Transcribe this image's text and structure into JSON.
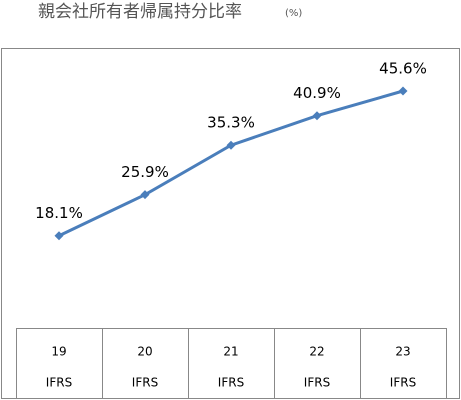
{
  "chart_data": {
    "type": "line",
    "title": "親会社所有者帰属持分比率",
    "title_unit": "(%)",
    "categories": [
      "19",
      "20",
      "21",
      "22",
      "23"
    ],
    "category_sublabels": [
      "IFRS",
      "IFRS",
      "IFRS",
      "IFRS",
      "IFRS"
    ],
    "values": [
      18.1,
      25.9,
      35.3,
      40.9,
      45.6
    ],
    "value_labels": [
      "18.1%",
      "25.9%",
      "35.3%",
      "40.9%",
      "45.6%"
    ],
    "color": "#4a7ebb"
  }
}
